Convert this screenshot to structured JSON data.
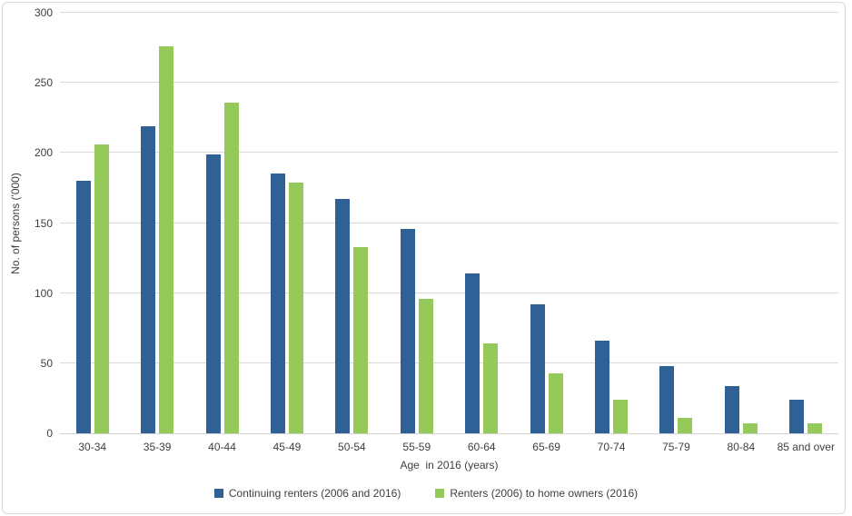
{
  "chart_data": {
    "type": "bar",
    "title": "",
    "categories": [
      "30-34",
      "35-39",
      "40-44",
      "45-49",
      "50-54",
      "55-59",
      "60-64",
      "65-69",
      "70-74",
      "75-79",
      "80-84",
      "85 and over"
    ],
    "series": [
      {
        "name": "Continuing renters (2006 and 2016)",
        "color": "#2F6096",
        "values": [
          180,
          219,
          199,
          185,
          167,
          146,
          114,
          92,
          66,
          48,
          34,
          24
        ]
      },
      {
        "name": "Renters (2006) to home owners (2016)",
        "color": "#95C95A",
        "values": [
          206,
          276,
          236,
          179,
          133,
          96,
          64,
          43,
          24,
          11,
          7,
          7
        ]
      }
    ],
    "xlabel": "Age  in 2016 (years)",
    "ylabel": "No. of persons ('000)",
    "ylim": [
      0,
      300
    ],
    "yticks": [
      0,
      50,
      100,
      150,
      200,
      250,
      300
    ],
    "grid": true,
    "legend_position": "bottom"
  },
  "colors": {
    "gridline": "#D9D9D9",
    "axis_line": "#D3D3D3",
    "text": "#404040",
    "frame_border": "#D9D9D9",
    "background": "#FFFFFF"
  }
}
